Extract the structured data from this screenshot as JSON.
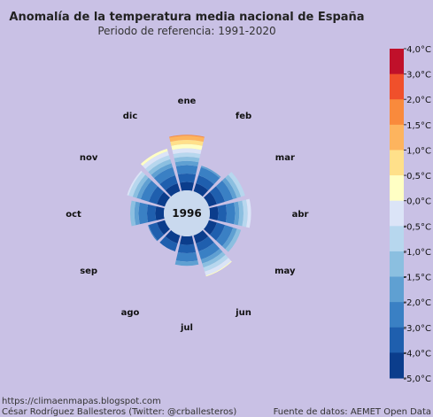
{
  "chart_data": {
    "type": "radial-bar",
    "title": "Anomalía de la temperatura media nacional de España",
    "subtitle": "Periodo de referencia: 1991-2020",
    "center_label": "1996",
    "months": [
      "ene",
      "feb",
      "mar",
      "abr",
      "may",
      "jun",
      "jul",
      "ago",
      "sep",
      "oct",
      "nov",
      "dic"
    ],
    "values": [
      1.6,
      -1.8,
      -0.5,
      -0.1,
      -1.0,
      0.1,
      -1.5,
      -3.0,
      -2.9,
      -1.0,
      -0.3,
      0.3
    ],
    "scale_min": -5.0,
    "scale_max": 4.0,
    "legend_ticks": [
      "4,0°C",
      "3,0°C",
      "2,0°C",
      "1,5°C",
      "1,0°C",
      "0,5°C",
      "0,0°C",
      "-0,5°C",
      "-1,0°C",
      "-1,5°C",
      "-2,0°C",
      "-3,0°C",
      "-4,0°C",
      "-5,0°C"
    ],
    "bands": [
      {
        "from": -5.0,
        "to": -4.0,
        "color": "#0b3d8c"
      },
      {
        "from": -4.0,
        "to": -3.0,
        "color": "#1f5fae"
      },
      {
        "from": -3.0,
        "to": -2.0,
        "color": "#3a80c4"
      },
      {
        "from": -2.0,
        "to": -1.5,
        "color": "#5fa0d2"
      },
      {
        "from": -1.5,
        "to": -1.0,
        "color": "#8bbfe0"
      },
      {
        "from": -1.0,
        "to": -0.5,
        "color": "#b7d7ee"
      },
      {
        "from": -0.5,
        "to": 0.0,
        "color": "#dbe4f7"
      },
      {
        "from": 0.0,
        "to": 0.5,
        "color": "#ffffc4"
      },
      {
        "from": 0.5,
        "to": 1.0,
        "color": "#ffe08a"
      },
      {
        "from": 1.0,
        "to": 1.5,
        "color": "#fdb45e"
      },
      {
        "from": 1.5,
        "to": 2.0,
        "color": "#f98a3c"
      },
      {
        "from": 2.0,
        "to": 3.0,
        "color": "#f0502b"
      },
      {
        "from": 3.0,
        "to": 4.0,
        "color": "#c0102a"
      }
    ],
    "legend": "right"
  },
  "footer": {
    "blog": "https://climaenmapas.blogspot.com",
    "author": "César Rodríguez Ballesteros (Twitter: @crballesteros)",
    "source": "Fuente de datos: AEMET Open Data"
  }
}
